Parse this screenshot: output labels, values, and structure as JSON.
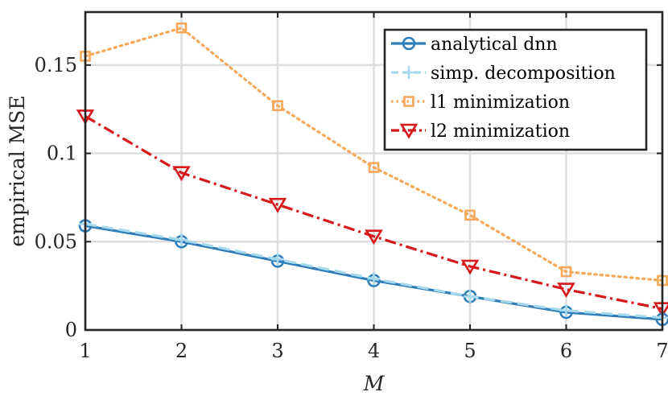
{
  "chart_data": {
    "type": "line",
    "title": "",
    "xlabel": "M",
    "ylabel": "empirical MSE",
    "x": [
      1,
      2,
      3,
      4,
      5,
      6,
      7
    ],
    "xlim": [
      1,
      7
    ],
    "ylim": [
      0,
      0.18
    ],
    "xticks": [
      1,
      2,
      3,
      4,
      5,
      6,
      7
    ],
    "xtick_labels": [
      "1",
      "2",
      "3",
      "4",
      "5",
      "6",
      "7"
    ],
    "yticks": [
      0,
      0.05,
      0.1,
      0.15
    ],
    "ytick_labels": [
      "0",
      "0.05",
      "0.1",
      "0.15"
    ],
    "grid": true,
    "legend_position": "top-right",
    "series": [
      {
        "name": "analytical dnn",
        "values": [
          0.059,
          0.05,
          0.039,
          0.028,
          0.019,
          0.01,
          0.006
        ],
        "color": "#2f7db8",
        "marker": "circle",
        "line_style": "solid"
      },
      {
        "name": "simp. decomposition",
        "values": [
          0.06,
          0.051,
          0.04,
          0.029,
          0.019,
          0.011,
          0.007
        ],
        "color": "#a6d8ee",
        "marker": "plus",
        "line_style": "dashed"
      },
      {
        "name": "l1 minimization",
        "values": [
          0.155,
          0.171,
          0.127,
          0.092,
          0.065,
          0.033,
          0.028
        ],
        "color": "#f7a858",
        "marker": "square",
        "line_style": "dotted"
      },
      {
        "name": "l2 minimization",
        "values": [
          0.121,
          0.089,
          0.071,
          0.053,
          0.036,
          0.023,
          0.012
        ],
        "color": "#d7191c",
        "marker": "triangle-down",
        "line_style": "dashdot"
      }
    ]
  }
}
